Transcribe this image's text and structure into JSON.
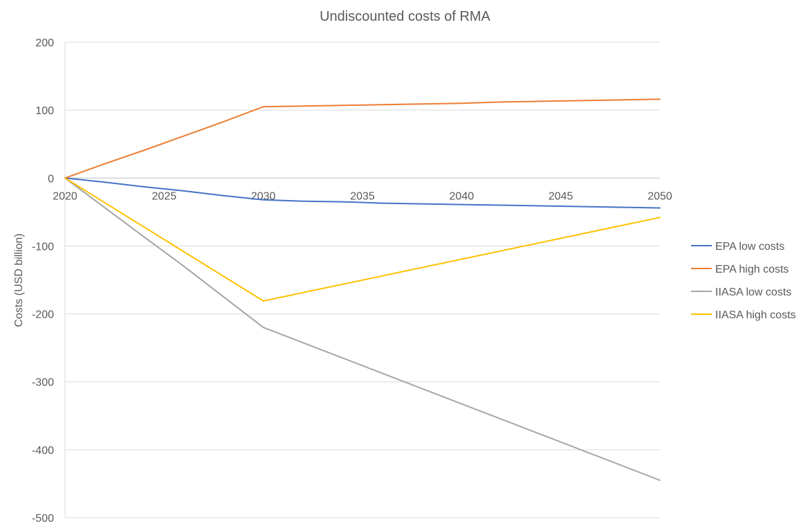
{
  "chart_data": {
    "type": "line",
    "title": "Undiscounted costs of RMA",
    "xlabel": "",
    "ylabel": "Costs (USD billion)",
    "xlim": [
      2020,
      2050
    ],
    "ylim": [
      -500,
      200
    ],
    "x_ticks": [
      "2020",
      "2025",
      "2030",
      "2035",
      "2040",
      "2045",
      "2050"
    ],
    "y_ticks": [
      "200",
      "100",
      "0",
      "-100",
      "-200",
      "-300",
      "-400",
      "-500"
    ],
    "grid": true,
    "legend_position": "right",
    "series": [
      {
        "name": "EPA low costs",
        "color": "#4472C4",
        "x": [
          2020,
          2022,
          2024,
          2026,
          2028,
          2030,
          2032,
          2034,
          2036,
          2038,
          2040,
          2042,
          2044,
          2046,
          2048,
          2050
        ],
        "y": [
          0,
          -6,
          -13,
          -19,
          -26,
          -32,
          -34,
          -35,
          -37,
          -38,
          -39,
          -40,
          -41,
          -42,
          -43,
          -44
        ]
      },
      {
        "name": "EPA high costs",
        "color": "#ED7D31",
        "x": [
          2020,
          2022,
          2024,
          2026,
          2028,
          2030,
          2032,
          2034,
          2036,
          2038,
          2040,
          2042,
          2044,
          2046,
          2048,
          2050
        ],
        "y": [
          0,
          21,
          41,
          62,
          83,
          105,
          106,
          107,
          108,
          109,
          110,
          112,
          113,
          114,
          115,
          116
        ]
      },
      {
        "name": "IIASA low costs",
        "color": "#A5A5A5",
        "x": [
          2020,
          2024,
          2026,
          2030,
          2050
        ],
        "y": [
          0,
          -87,
          -130,
          -220,
          -445
        ]
      },
      {
        "name": "IIASA high costs",
        "color": "#FFC000",
        "x": [
          2020,
          2030,
          2050
        ],
        "y": [
          0,
          -181,
          -58
        ]
      }
    ]
  }
}
